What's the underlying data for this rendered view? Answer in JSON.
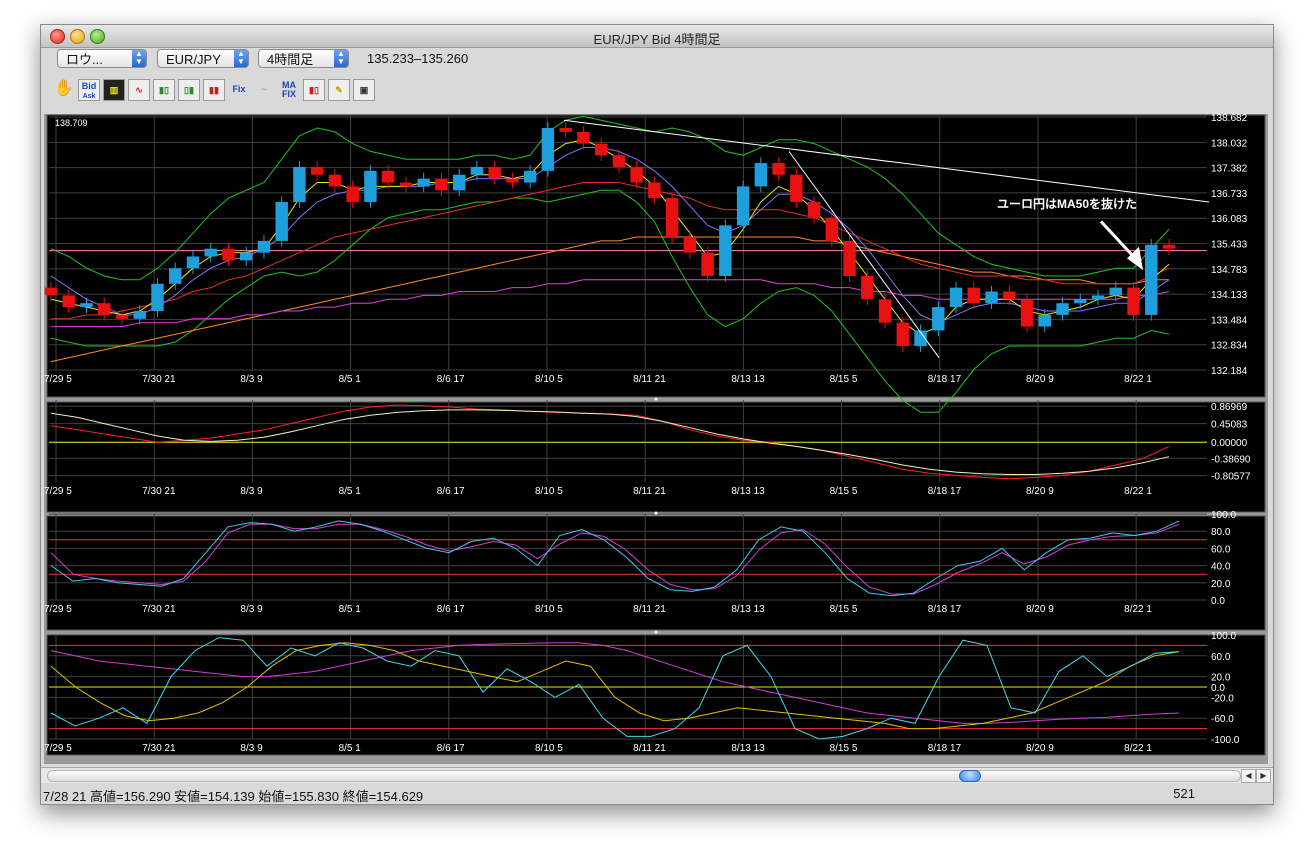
{
  "window": {
    "title": "EUR/JPY Bid 4時間足"
  },
  "toolbar": {
    "chart_type": "ロウ...",
    "symbol": "EUR/JPY",
    "timeframe": "4時間足",
    "price_range": "135.233–135.260",
    "tools": [
      "hand-icon",
      "bid-ask-icon",
      "bar-chart-icon",
      "wave-icon",
      "candles-icon",
      "candles2-icon",
      "candles3-icon",
      "fix-icon",
      "curve-icon",
      "ma-fix-icon",
      "candle-style-icon",
      "pen-icon",
      "camera-icon"
    ],
    "tool_labels": {
      "bid": "Bid",
      "ask": "Ask",
      "fix": "Fix",
      "ma": "MA",
      "ma_fix": "FIX"
    }
  },
  "status": {
    "left": "7/28 21  高値=156.290 安値=154.139 始値=155.830 終値=154.629",
    "right": "521"
  },
  "colors": {
    "background": "#000000",
    "up": "#1e9fdc",
    "down": "#e81010",
    "bb": "#22c222",
    "ma_short": "#e8e800",
    "ma_mid": "#8a70ff",
    "ma_long": "#e0302a",
    "ma_200": "#e040e0",
    "ma_orange": "#ff8a20",
    "trendline": "#ffffff"
  },
  "chart_data": [
    {
      "type": "candlestick",
      "top_left_label": "138.709",
      "annotation": "ユーロ円はMA50を抜けた",
      "x_tick_labels": [
        "7/29 5",
        "7/30 21",
        "8/3 9",
        "8/5 1",
        "8/6 17",
        "8/10 5",
        "8/11 21",
        "8/13 13",
        "8/15 5",
        "8/18 17",
        "8/20 9",
        "8/22 1"
      ],
      "y_tick_labels": [
        "138.682",
        "138.032",
        "137.382",
        "136.733",
        "136.083",
        "135.433",
        "134.783",
        "134.133",
        "133.484",
        "132.834",
        "132.184"
      ],
      "ylim": [
        132.184,
        138.709
      ],
      "horizontal_line": 135.25,
      "closes": [
        134.1,
        133.8,
        133.9,
        133.6,
        133.5,
        133.7,
        134.4,
        134.8,
        135.1,
        135.3,
        135.0,
        135.2,
        135.5,
        136.5,
        137.4,
        137.2,
        136.9,
        136.5,
        137.3,
        137.0,
        136.9,
        137.1,
        136.8,
        137.2,
        137.4,
        137.1,
        137.0,
        137.3,
        138.4,
        138.3,
        138.0,
        137.7,
        137.4,
        137.0,
        136.6,
        135.6,
        135.2,
        134.6,
        135.9,
        136.9,
        137.5,
        137.2,
        136.5,
        136.1,
        135.5,
        134.6,
        134.0,
        133.4,
        132.8,
        133.2,
        133.8,
        134.3,
        133.9,
        134.2,
        134.0,
        133.3,
        133.6,
        133.9,
        134.0,
        134.1,
        134.3,
        133.6,
        135.4,
        135.3
      ],
      "ma_short": [
        134.0,
        133.9,
        133.8,
        133.7,
        133.6,
        133.7,
        134.0,
        134.4,
        134.8,
        135.1,
        135.2,
        135.2,
        135.3,
        135.9,
        136.6,
        137.0,
        137.0,
        136.8,
        136.9,
        136.9,
        136.9,
        137.0,
        137.0,
        137.0,
        137.2,
        137.2,
        137.1,
        137.2,
        137.7,
        138.0,
        138.1,
        137.9,
        137.6,
        137.3,
        136.9,
        136.3,
        135.7,
        135.1,
        135.2,
        135.8,
        136.5,
        136.9,
        136.7,
        136.3,
        135.8,
        135.2,
        134.6,
        134.0,
        133.4,
        133.1,
        133.3,
        133.8,
        134.0,
        134.0,
        134.0,
        133.7,
        133.6,
        133.7,
        133.8,
        134.0,
        134.1,
        134.0,
        134.5,
        134.9
      ],
      "ma_mid": [
        134.6,
        134.3,
        134.0,
        133.8,
        133.6,
        133.6,
        133.8,
        134.1,
        134.5,
        134.8,
        135.0,
        135.1,
        135.3,
        135.6,
        136.1,
        136.5,
        136.7,
        136.8,
        136.8,
        136.9,
        136.9,
        136.9,
        137.0,
        137.0,
        137.1,
        137.1,
        137.1,
        137.1,
        137.4,
        137.7,
        137.9,
        137.9,
        137.8,
        137.6,
        137.3,
        136.9,
        136.4,
        135.9,
        135.7,
        135.9,
        136.3,
        136.7,
        136.7,
        136.5,
        136.2,
        135.8,
        135.3,
        134.7,
        134.1,
        133.6,
        133.4,
        133.6,
        133.8,
        133.9,
        133.9,
        133.8,
        133.7,
        133.7,
        133.7,
        133.8,
        133.9,
        133.9,
        134.2,
        134.5
      ],
      "ma_long": [
        133.5,
        133.5,
        133.6,
        133.6,
        133.7,
        133.8,
        133.9,
        134.0,
        134.2,
        134.3,
        134.5,
        134.6,
        134.8,
        135.0,
        135.2,
        135.4,
        135.6,
        135.7,
        135.8,
        135.9,
        136.0,
        136.1,
        136.2,
        136.3,
        136.4,
        136.5,
        136.6,
        136.7,
        136.8,
        136.9,
        137.0,
        137.0,
        137.0,
        136.9,
        136.8,
        136.7,
        136.6,
        136.4,
        136.3,
        136.3,
        136.3,
        136.3,
        136.2,
        136.1,
        135.9,
        135.7,
        135.5,
        135.3,
        135.1,
        134.9,
        134.8,
        134.7,
        134.6,
        134.6,
        134.6,
        134.5,
        134.5,
        134.4,
        134.4,
        134.4,
        134.4,
        134.4,
        134.6,
        134.8
      ],
      "ma_200": [
        133.3,
        133.3,
        133.3,
        133.3,
        133.3,
        133.4,
        133.4,
        133.4,
        133.5,
        133.5,
        133.5,
        133.6,
        133.6,
        133.7,
        133.7,
        133.8,
        133.8,
        133.9,
        133.9,
        134.0,
        134.0,
        134.1,
        134.1,
        134.2,
        134.2,
        134.2,
        134.3,
        134.3,
        134.4,
        134.4,
        134.5,
        134.5,
        134.5,
        134.5,
        134.5,
        134.5,
        134.5,
        134.5,
        134.5,
        134.5,
        134.5,
        134.4,
        134.4,
        134.4,
        134.3,
        134.3,
        134.2,
        134.2,
        134.1,
        134.1,
        134.0,
        134.0,
        134.0,
        134.0,
        134.0,
        134.0,
        134.0,
        134.0,
        134.0,
        134.0,
        134.0,
        134.1,
        134.1,
        134.2
      ],
      "ma_orange": [
        132.4,
        132.5,
        132.6,
        132.7,
        132.8,
        132.9,
        133.0,
        133.1,
        133.2,
        133.3,
        133.4,
        133.5,
        133.6,
        133.7,
        133.8,
        133.9,
        134.0,
        134.1,
        134.2,
        134.3,
        134.4,
        134.5,
        134.6,
        134.7,
        134.8,
        134.9,
        135.0,
        135.1,
        135.2,
        135.3,
        135.4,
        135.5,
        135.5,
        135.6,
        135.6,
        135.6,
        135.6,
        135.6,
        135.6,
        135.6,
        135.6,
        135.6,
        135.6,
        135.5,
        135.5,
        135.4,
        135.3,
        135.2,
        135.1,
        135.0,
        134.9,
        134.8,
        134.7,
        134.7,
        134.6,
        134.6,
        134.5,
        134.5,
        134.5,
        134.4,
        134.4,
        134.4,
        134.5,
        134.5
      ],
      "bb_upper": [
        135.3,
        135.1,
        134.8,
        134.6,
        134.5,
        134.5,
        134.8,
        135.2,
        135.7,
        136.2,
        136.6,
        136.8,
        137.0,
        137.6,
        138.2,
        138.4,
        138.3,
        138.0,
        137.8,
        137.7,
        137.6,
        137.6,
        137.6,
        137.6,
        137.7,
        137.7,
        137.6,
        137.7,
        138.3,
        138.6,
        138.7,
        138.6,
        138.5,
        138.4,
        138.3,
        138.4,
        138.3,
        138.1,
        137.8,
        137.7,
        137.9,
        138.1,
        138.1,
        138.0,
        137.8,
        137.6,
        137.4,
        137.1,
        136.7,
        136.2,
        135.7,
        135.4,
        135.1,
        134.9,
        134.8,
        134.7,
        134.6,
        134.6,
        134.6,
        134.7,
        134.8,
        134.8,
        135.3,
        135.8
      ],
      "bb_lower": [
        133.0,
        132.9,
        132.8,
        132.8,
        132.8,
        132.8,
        132.8,
        132.9,
        133.2,
        133.6,
        134.0,
        134.3,
        134.6,
        134.7,
        134.6,
        134.7,
        135.0,
        135.4,
        135.8,
        136.1,
        136.2,
        136.3,
        136.3,
        136.4,
        136.5,
        136.5,
        136.6,
        136.6,
        136.5,
        136.6,
        136.7,
        136.8,
        136.8,
        136.5,
        136.0,
        135.1,
        134.3,
        133.6,
        133.3,
        133.5,
        133.9,
        134.2,
        134.3,
        134.1,
        133.7,
        133.1,
        132.5,
        131.9,
        131.4,
        131.1,
        131.1,
        131.6,
        132.2,
        132.6,
        132.8,
        132.8,
        132.8,
        132.8,
        132.8,
        132.9,
        133.0,
        133.0,
        133.2,
        133.1
      ]
    },
    {
      "type": "line",
      "y_tick_labels": [
        "0.86969",
        "0.45083",
        "0.00000",
        "-0.38690",
        "-0.80577"
      ],
      "ylim": [
        -0.96,
        1.02
      ],
      "x_tick_labels": [
        "7/29 5",
        "7/30 21",
        "8/3 9",
        "8/5 1",
        "8/6 17",
        "8/10 5",
        "8/11 21",
        "8/13 13",
        "8/15 5",
        "8/18 17",
        "8/20 9",
        "8/22 1"
      ],
      "series": [
        {
          "values": [
            0.4,
            0.3,
            0.2,
            0.1,
            0.0,
            0.05,
            0.1,
            0.2,
            0.3,
            0.45,
            0.6,
            0.75,
            0.85,
            0.9,
            0.88,
            0.85,
            0.8,
            0.78,
            0.75,
            0.72,
            0.7,
            0.68,
            0.65,
            0.5,
            0.3,
            0.15,
            0.05,
            0.0,
            -0.1,
            -0.2,
            -0.35,
            -0.5,
            -0.65,
            -0.75,
            -0.8,
            -0.85,
            -0.88,
            -0.85,
            -0.8,
            -0.7,
            -0.55,
            -0.4,
            -0.1
          ]
        },
        {
          "values": [
            0.7,
            0.6,
            0.45,
            0.3,
            0.15,
            0.05,
            0.02,
            0.05,
            0.12,
            0.25,
            0.4,
            0.55,
            0.65,
            0.72,
            0.76,
            0.78,
            0.78,
            0.77,
            0.75,
            0.73,
            0.7,
            0.68,
            0.62,
            0.5,
            0.35,
            0.2,
            0.08,
            -0.02,
            -0.1,
            -0.2,
            -0.3,
            -0.42,
            -0.55,
            -0.65,
            -0.72,
            -0.76,
            -0.78,
            -0.78,
            -0.75,
            -0.7,
            -0.62,
            -0.5,
            -0.35
          ]
        }
      ]
    },
    {
      "type": "line",
      "y_tick_labels": [
        "100.0",
        "80.0",
        "60.0",
        "40.0",
        "20.0",
        "0.0"
      ],
      "ylim": [
        0,
        100
      ],
      "horizontal_lines": [
        70,
        30
      ],
      "x_tick_labels": [
        "7/29 5",
        "7/30 21",
        "8/3 9",
        "8/5 1",
        "8/6 17",
        "8/10 5",
        "8/11 21",
        "8/13 13",
        "8/15 5",
        "8/18 17",
        "8/20 9",
        "8/22 1"
      ],
      "series": [
        {
          "values": [
            40,
            22,
            25,
            20,
            18,
            16,
            25,
            55,
            85,
            90,
            88,
            80,
            85,
            92,
            88,
            80,
            70,
            60,
            55,
            68,
            72,
            60,
            40,
            75,
            82,
            70,
            50,
            25,
            12,
            10,
            15,
            35,
            70,
            85,
            80,
            55,
            25,
            8,
            5,
            8,
            25,
            40,
            45,
            60,
            35,
            55,
            70,
            72,
            78,
            75,
            80,
            92
          ]
        },
        {
          "values": [
            55,
            30,
            25,
            22,
            20,
            18,
            22,
            45,
            78,
            88,
            88,
            83,
            83,
            88,
            88,
            82,
            74,
            64,
            57,
            62,
            68,
            64,
            48,
            65,
            78,
            74,
            58,
            35,
            18,
            12,
            13,
            28,
            58,
            78,
            82,
            65,
            38,
            15,
            7,
            7,
            18,
            32,
            42,
            55,
            42,
            50,
            64,
            70,
            74,
            75,
            78,
            88
          ]
        }
      ]
    },
    {
      "type": "line",
      "y_tick_labels": [
        "100.0",
        "60.0",
        "20.0",
        "0.0",
        "-20.0",
        "-60.0",
        "-100.0"
      ],
      "ylim": [
        -100,
        100
      ],
      "horizontal_lines": [
        80,
        0,
        -80
      ],
      "x_tick_labels": [
        "7/29 5",
        "7/30 21",
        "8/3 9",
        "8/5 1",
        "8/6 17",
        "8/10 5",
        "8/11 21",
        "8/13 13",
        "8/15 5",
        "8/18 17",
        "8/20 9",
        "8/22 1"
      ],
      "series": [
        {
          "values": [
            -50,
            -75,
            -60,
            -40,
            -70,
            20,
            70,
            95,
            90,
            40,
            75,
            60,
            85,
            75,
            50,
            40,
            70,
            60,
            -10,
            35,
            10,
            -20,
            5,
            -60,
            -95,
            -95,
            -80,
            -40,
            60,
            80,
            20,
            -80,
            -100,
            -95,
            -80,
            -60,
            -70,
            20,
            90,
            80,
            -40,
            -50,
            30,
            60,
            20,
            40,
            65,
            68
          ]
        },
        {
          "values": [
            40,
            0,
            -30,
            -55,
            -65,
            -60,
            -50,
            -30,
            0,
            40,
            70,
            80,
            85,
            80,
            70,
            50,
            40,
            30,
            20,
            10,
            30,
            50,
            40,
            -20,
            -50,
            -65,
            -60,
            -50,
            -40,
            -45,
            -50,
            -55,
            -60,
            -65,
            -70,
            -80,
            -80,
            -75,
            -70,
            -60,
            -50,
            -30,
            -10,
            10,
            40,
            60,
            68
          ]
        },
        {
          "values": [
            70,
            60,
            50,
            45,
            40,
            35,
            30,
            25,
            20,
            20,
            25,
            30,
            40,
            50,
            60,
            70,
            75,
            80,
            82,
            83,
            84,
            85,
            85,
            80,
            70,
            55,
            40,
            25,
            10,
            0,
            -10,
            -20,
            -30,
            -40,
            -50,
            -55,
            -60,
            -65,
            -70,
            -70,
            -68,
            -65,
            -62,
            -60,
            -58,
            -55,
            -52,
            -50
          ]
        }
      ]
    }
  ]
}
